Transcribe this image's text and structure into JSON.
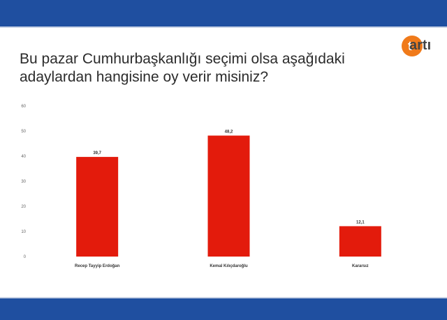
{
  "header": {
    "title_lines": [
      "Bu pazar Cumhurbaşkanlığı seçimi olsa aşağıdaki",
      "adaylardan hangisine  oy verir misiniz?"
    ]
  },
  "logo": {
    "text": "artı",
    "letter": "t"
  },
  "colors": {
    "band": "#1f4fa0",
    "bar": "#e31b0c",
    "logo_orange": "#f07a1a"
  },
  "chart_data": {
    "type": "bar",
    "title": "Bu pazar Cumhurbaşkanlığı seçimi olsa aşağıdaki adaylardan hangisine  oy verir misiniz?",
    "categories": [
      "Recep Tayyip Erdoğan",
      "Kemal Kılıçdaroğlu",
      "Kararsız"
    ],
    "values": [
      39.7,
      48.2,
      12.1
    ],
    "value_labels": [
      "39,7",
      "48,2",
      "12,1"
    ],
    "ylim": [
      0,
      60
    ],
    "yticks": [
      "0",
      "10",
      "20",
      "30",
      "40",
      "50",
      "60"
    ],
    "xlabel": "",
    "ylabel": "",
    "grid": false,
    "legend": "none"
  }
}
